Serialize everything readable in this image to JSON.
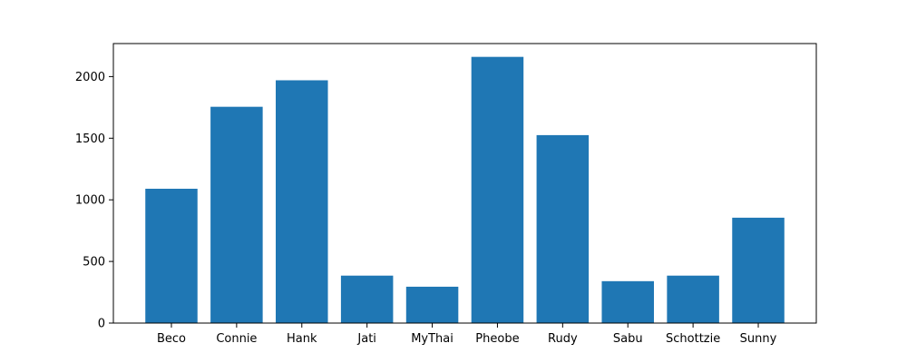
{
  "chart_data": {
    "type": "bar",
    "title": "",
    "xlabel": "",
    "ylabel": "",
    "categories": [
      "Beco",
      "Connie",
      "Hank",
      "Jati",
      "MyThai",
      "Pheobe",
      "Rudy",
      "Sabu",
      "Schottzie",
      "Sunny"
    ],
    "values": [
      1090,
      1755,
      1970,
      385,
      295,
      2160,
      1525,
      340,
      385,
      855
    ],
    "ylim": [
      0,
      2268
    ],
    "yticks": [
      0,
      500,
      1000,
      1500,
      2000
    ],
    "grid": false,
    "legend": "none",
    "bar_color": "#1f77b4"
  }
}
